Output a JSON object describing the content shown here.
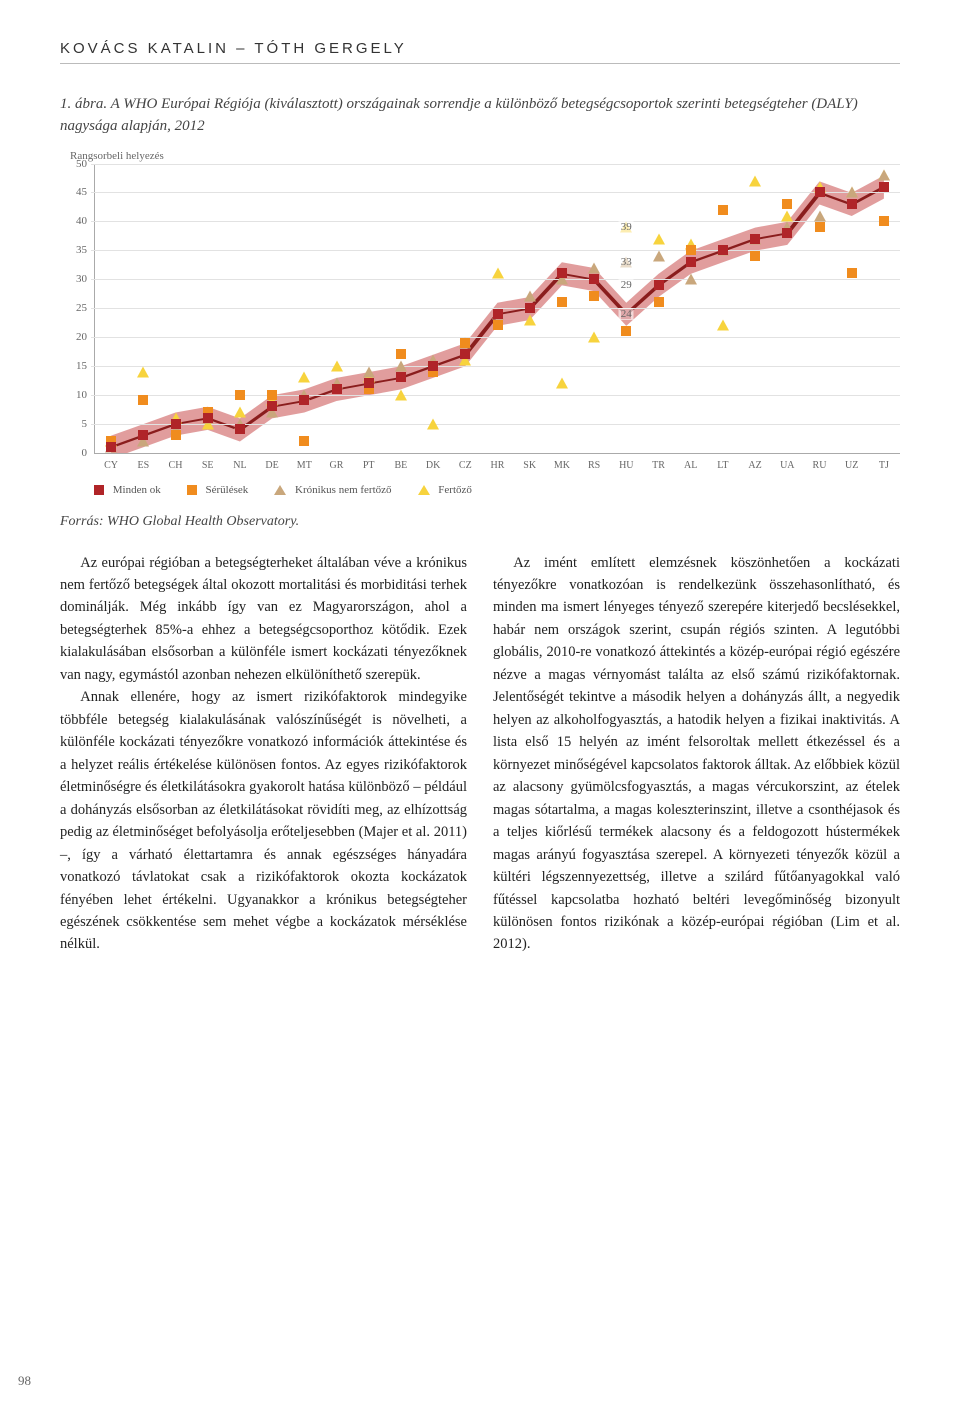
{
  "authors": "KOVÁCS KATALIN – TÓTH GERGELY",
  "figure": {
    "num": "1. ábra.",
    "caption": "A WHO Európai Régiója (kiválasztott) országainak sorrendje a különböző betegségcsoportok szerinti betegségteher (DALY) nagysága alapján, 2012"
  },
  "source": "Forrás: WHO Global Health Observatory.",
  "chart": {
    "type": "scatter+line",
    "ylabel": "Rangsorbeli helyezés",
    "ylim": [
      0,
      50
    ],
    "ytick_step": 5,
    "xlabels": [
      "CY",
      "ES",
      "CH",
      "SE",
      "NL",
      "DE",
      "MT",
      "GR",
      "PT",
      "BE",
      "DK",
      "CZ",
      "HR",
      "SK",
      "MK",
      "RS",
      "HU",
      "TR",
      "AL",
      "LT",
      "AZ",
      "UA",
      "RU",
      "UZ",
      "TJ"
    ],
    "series": {
      "minden_ok": {
        "label": "Minden ok",
        "color": "#b02428",
        "marker": "square",
        "values": [
          1,
          3,
          5,
          6,
          4,
          8,
          9,
          11,
          12,
          13,
          15,
          17,
          24,
          25,
          31,
          30,
          24,
          29,
          33,
          35,
          37,
          38,
          45,
          43,
          46
        ]
      },
      "serulesek": {
        "label": "Sérülések",
        "color": "#f08c1e",
        "marker": "square",
        "values": [
          2,
          9,
          3,
          7,
          10,
          10,
          2,
          11,
          11,
          17,
          14,
          19,
          22,
          25,
          26,
          27,
          21,
          26,
          35,
          42,
          34,
          43,
          39,
          31,
          40
        ]
      },
      "kronikus": {
        "label": "Krónikus nem fertőző",
        "color": "#c9a77c",
        "marker": "triangle",
        "values": [
          1,
          2,
          4,
          6,
          5,
          7,
          10,
          12,
          14,
          15,
          16,
          19,
          24,
          27,
          30,
          32,
          33,
          34,
          30,
          35,
          37,
          39,
          41,
          45,
          48
        ]
      },
      "fertozo": {
        "label": "Fertőző",
        "color": "#f7d33d",
        "marker": "triangle",
        "values": [
          2,
          14,
          6,
          5,
          7,
          9,
          13,
          15,
          13,
          10,
          5,
          16,
          31,
          23,
          12,
          20,
          39,
          37,
          36,
          22,
          47,
          41,
          46,
          45,
          48
        ]
      }
    },
    "ribbon": {
      "color": "#c94d4d",
      "opacity": 0.55,
      "width": 4
    },
    "annotations": [
      {
        "x_idx": 16,
        "y": 39,
        "text": "39"
      },
      {
        "x_idx": 16,
        "y": 33,
        "text": "33"
      },
      {
        "x_idx": 16,
        "y": 29,
        "text": "29"
      },
      {
        "x_idx": 16,
        "y": 24,
        "text": "24"
      }
    ],
    "grid_color": "#e2e2e2",
    "axis_color": "#aaaaaa",
    "font_size": 11
  },
  "body": {
    "p1": "Az európai régióban a betegségterheket általában véve a krónikus nem fertőző betegségek által okozott mortalitási és morbiditási terhek dominálják. Még inkább így van ez Magyarországon, ahol a betegségterhek 85%-a ehhez a betegségcsoporthoz kötődik. Ezek kialakulásában elsősorban a különféle ismert kockázati tényezőknek van nagy, egymástól azonban nehezen elkülöníthető szerepük.",
    "p2": "Annak ellenére, hogy az ismert rizikófaktorok mindegyike többféle betegség kialakulásának valószínűségét is növelheti, a különféle kockázati tényezőkre vonatkozó információk áttekintése és a helyzet reális értékelése különösen fontos. Az egyes rizikófaktorok életminőségre és életkilátásokra gyakorolt hatása különböző – például a dohányzás elsősorban az életkilátásokat rövidíti meg, az elhízottság pedig az életminőséget befolyásolja erőteljesebben (Majer et al. 2011) –, így a várható élettartamra és annak egészséges hányadára vonatkozó távlatokat csak a rizikófaktorok okozta kockázatok fényében lehet értékelni. Ugyanakkor a krónikus betegségteher egészének csökkentése sem mehet végbe a kockázatok mérséklése nélkül.",
    "p3": "Az imént említett elemzésnek köszönhetően a kockázati tényezőkre vonatkozóan is rendelkezünk összehasonlítható, és minden ma ismert lényeges tényező szerepére kiterjedő becslésekkel, habár nem országok szerint, csupán régiós szinten. A legutóbbi globális, 2010-re vonatkozó áttekintés a közép-európai régió egészére nézve a magas vérnyomást találta az első számú rizikófaktornak. Jelentőségét tekintve a második helyen a dohányzás állt, a negyedik helyen az alkoholfogyasztás, a hatodik helyen a fizikai inaktivitás. A lista első 15 helyén az imént felsoroltak mellett étkezéssel és a környezet minőségével kapcsolatos faktorok álltak. Az előbbiek közül az alacsony gyümölcsfogyasztás, a magas vércukorszint, az ételek magas sótartalma, a magas koleszterinszint, illetve a csonthéjasok és a teljes kiőrlésű termékek alacsony és a feldogozott hústermékek magas arányú fogyasztása szerepel. A környezeti tényezők közül a kültéri légszennyezettség, illetve a szilárd fűtőanyagokkal való fűtéssel kapcsolatba hozható beltéri levegőminőség bizonyult különösen fontos rizikónak a közép-európai régióban (Lim et al. 2012)."
  },
  "page_number": "98"
}
